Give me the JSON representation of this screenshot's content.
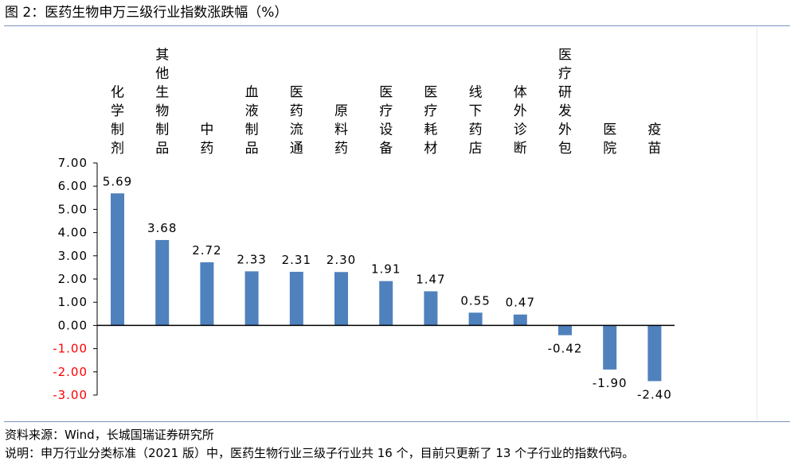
{
  "figure": {
    "title": "图 2：医药生物申万三级行业指数涨跌幅（%）",
    "source": "资料来源：Wind，长城国瑞证券研究所",
    "note": "说明：申万行业分类标准（2021 版）中，医药生物行业三级子行业共 16 个，目前只更新了 13 个子行业的指数代码。"
  },
  "colors": {
    "bar": "#4f81bd",
    "axis": "#000000",
    "negative_tick": "#ff0000",
    "rule": "#7e93c2"
  },
  "chart_data": {
    "type": "bar",
    "title": "",
    "xlabel": "",
    "ylabel": "",
    "ylim": [
      -3,
      7
    ],
    "yticks": [
      "7.00",
      "6.00",
      "5.00",
      "4.00",
      "3.00",
      "2.00",
      "1.00",
      "0.00",
      "-1.00",
      "-2.00",
      "-3.00"
    ],
    "ytick_values": [
      7,
      6,
      5,
      4,
      3,
      2,
      1,
      0,
      -1,
      -2,
      -3
    ],
    "grid": false,
    "categories": [
      "化学制剂",
      "其他生物制品",
      "中药",
      "血液制品",
      "医药流通",
      "原料药",
      "医疗设备",
      "医疗耗材",
      "线下药店",
      "体外诊断",
      "医疗研发外包",
      "医院",
      "疫苗"
    ],
    "values": [
      5.69,
      3.68,
      2.72,
      2.33,
      2.31,
      2.3,
      1.91,
      1.47,
      0.55,
      0.47,
      -0.42,
      -1.9,
      -2.4
    ],
    "value_labels": [
      "5.69",
      "3.68",
      "2.72",
      "2.33",
      "2.31",
      "2.30",
      "1.91",
      "1.47",
      "0.55",
      "0.47",
      "-0.42",
      "-1.90",
      "-2.40"
    ]
  }
}
